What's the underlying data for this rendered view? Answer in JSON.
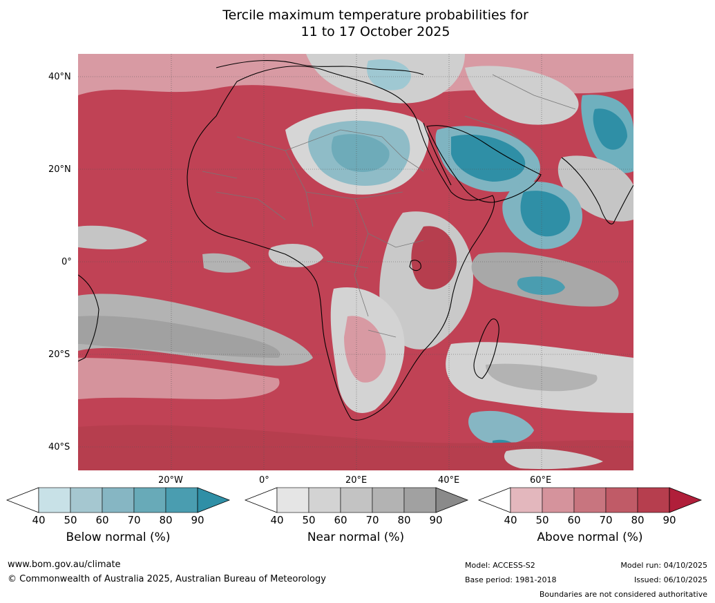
{
  "title": {
    "line1": "Tercile maximum temperature probabilities for",
    "line2": "11 to 17 October 2025"
  },
  "lat_labels": [
    "40°N",
    "20°N",
    "0°",
    "20°S",
    "40°S"
  ],
  "lon_labels": [
    "20°W",
    "0°",
    "20°E",
    "40°E",
    "60°E"
  ],
  "colorbars": [
    {
      "name": "Below normal (%)",
      "ticks": [
        "40",
        "50",
        "60",
        "70",
        "80",
        "90"
      ],
      "colors": [
        "#ffffff",
        "#c8e1e7",
        "#a5c7d0",
        "#86b6c3",
        "#68aab8",
        "#4a9db0",
        "#2f8fa6"
      ]
    },
    {
      "name": "Near normal (%)",
      "ticks": [
        "40",
        "50",
        "60",
        "70",
        "80",
        "90"
      ],
      "colors": [
        "#ffffff",
        "#e5e5e5",
        "#d3d3d3",
        "#c3c3c3",
        "#b3b3b3",
        "#a1a1a1",
        "#8a8a8a"
      ]
    },
    {
      "name": "Above normal (%)",
      "ticks": [
        "40",
        "50",
        "60",
        "70",
        "80",
        "90"
      ],
      "colors": [
        "#ffffff",
        "#e3b7bd",
        "#d5939c",
        "#c8757f",
        "#c05b67",
        "#b63e4e",
        "#b01f3a"
      ]
    }
  ],
  "footer": {
    "website": "www.bom.gov.au/climate",
    "copyright": "© Commonwealth of Australia 2025, Australian Bureau of Meteorology",
    "model": "Model: ACCESS-S2",
    "base_period": "Base period: 1981-2018",
    "model_run": "Model run: 04/10/2025",
    "issued": "Issued: 06/10/2025",
    "disclaimer": "Boundaries are not considered authoritative"
  }
}
